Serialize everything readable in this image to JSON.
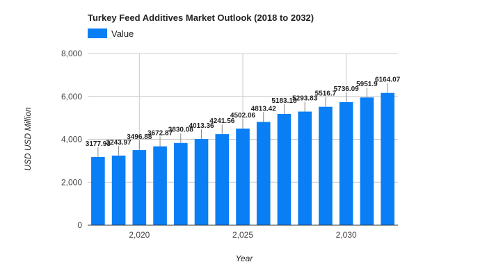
{
  "chart_data": {
    "type": "bar",
    "title": "Turkey Feed Additives Market Outlook (2018 to 2032)",
    "xlabel": "Year",
    "ylabel": "USD USD Million",
    "x": [
      2018,
      2019,
      2020,
      2021,
      2022,
      2023,
      2024,
      2025,
      2026,
      2027,
      2028,
      2029,
      2030,
      2031,
      2032
    ],
    "series": [
      {
        "name": "Value",
        "values": [
          3177.93,
          3243.97,
          3496.88,
          3672.87,
          3830.08,
          4013.36,
          4241.56,
          4502.06,
          4813.42,
          5183.18,
          5293.83,
          5516.7,
          5736.09,
          5951.9,
          6164.07
        ],
        "labels": [
          "3177.93",
          "3243.97",
          "3496.88",
          "3672.87",
          "3830.08",
          "4013.36",
          "4241.56",
          "4502.06",
          "4813.42",
          "5183.18",
          "5293.83",
          "5516.7",
          "5736.09",
          "5951.9",
          "6164.07"
        ]
      }
    ],
    "ylim": [
      0,
      8000
    ],
    "yticks": [
      0,
      2000,
      4000,
      6000,
      8000
    ],
    "ytick_labels": [
      "0",
      "2,000",
      "4,000",
      "6,000",
      "8,000"
    ],
    "xticks": [
      2020,
      2025,
      2030
    ],
    "xtick_labels": [
      "2,020",
      "2,025",
      "2,030"
    ],
    "legend": "top-left",
    "grid": true,
    "bar_color": "#0a7ff5"
  }
}
